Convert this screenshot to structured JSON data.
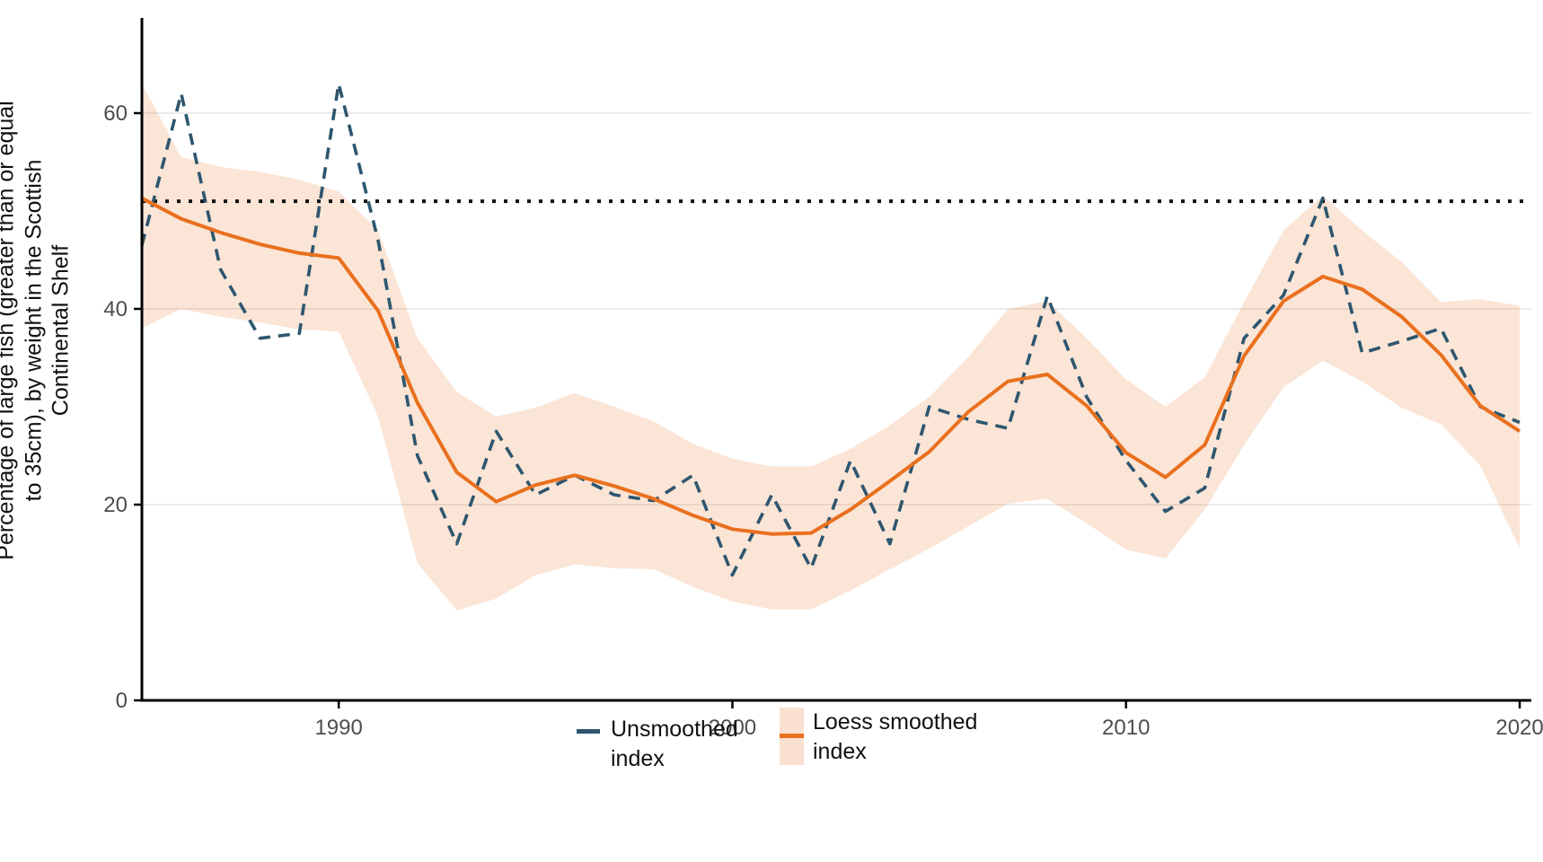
{
  "chart_data": {
    "type": "line",
    "title": "",
    "xlabel": "",
    "ylabel": "Percentage of large fish (greater than or equal\nto 35cm), by weight in the Scottish\nContinental Shelf",
    "x_ticks": [
      1990,
      2000,
      2010,
      2020
    ],
    "y_ticks": [
      0,
      20,
      40,
      60
    ],
    "xlim": [
      1985,
      2020
    ],
    "ylim": [
      0,
      69
    ],
    "grid": "horizontal only, very light grey",
    "legend_position": "bottom center",
    "reference_line": {
      "value": 51,
      "style": "dotted",
      "color": "#111111"
    },
    "years": [
      1985,
      1986,
      1987,
      1988,
      1989,
      1990,
      1991,
      1992,
      1993,
      1994,
      1995,
      1996,
      1997,
      1998,
      1999,
      2000,
      2001,
      2002,
      2003,
      2004,
      2005,
      2006,
      2007,
      2008,
      2009,
      2010,
      2011,
      2012,
      2013,
      2014,
      2015,
      2016,
      2017,
      2018,
      2019,
      2020
    ],
    "series": [
      {
        "name": "Unsmoothed index",
        "style": "dashed",
        "color": "#2E566F",
        "values": [
          46.5,
          62,
          44,
          37,
          37.5,
          63,
          47,
          25,
          16,
          27.5,
          21,
          23,
          21,
          20.4,
          23,
          12.8,
          21,
          13.5,
          24.5,
          16,
          30,
          28.7,
          27.8,
          41.3,
          31,
          24.5,
          19.3,
          21.7,
          37,
          41.4,
          51.3,
          35.5,
          36.7,
          38,
          30,
          28.4
        ]
      },
      {
        "name": "Loess smoothed index",
        "style": "solid with confidence band",
        "color": "#E9701E",
        "band_color": "#FBE2D4",
        "values": [
          51.3,
          49.2,
          47.8,
          46.6,
          45.7,
          45.2,
          39.8,
          30.4,
          23.3,
          20.3,
          22.0,
          23.0,
          21.9,
          20.6,
          18.9,
          17.5,
          17.0,
          17.1,
          19.5,
          22.4,
          25.4,
          29.5,
          32.6,
          33.3,
          30.1,
          25.3,
          22.8,
          26.1,
          35.2,
          40.8,
          43.3,
          42.0,
          39.2,
          35.3,
          30.1,
          27.5
        ],
        "ci_lower": [
          38.0,
          40.0,
          39.2,
          38.6,
          37.9,
          37.7,
          29.0,
          14.0,
          9.2,
          10.4,
          12.8,
          13.9,
          13.5,
          13.4,
          11.6,
          10.1,
          9.3,
          9.3,
          11.2,
          13.4,
          15.5,
          17.8,
          20.1,
          20.6,
          18.1,
          15.4,
          14.5,
          19.5,
          26.1,
          32.0,
          34.7,
          32.6,
          29.9,
          28.2,
          24.0,
          15.5
        ],
        "ci_upper": [
          63.0,
          55.5,
          54.5,
          54.0,
          53.2,
          52.0,
          48.0,
          37.0,
          31.5,
          29.0,
          29.9,
          31.4,
          30.0,
          28.5,
          26.2,
          24.7,
          23.9,
          23.9,
          25.7,
          28.1,
          31.0,
          35.1,
          40.0,
          40.8,
          37.0,
          32.8,
          30.0,
          33.0,
          40.7,
          48.0,
          51.6,
          48.0,
          44.8,
          40.7,
          41.0,
          40.3
        ]
      }
    ],
    "legend_labels": {
      "unsmoothed": "Unsmoothed\n index",
      "loess": "Loess smoothed\n index"
    },
    "colors": {
      "unsmoothed_line": "#2E566F",
      "loess_line": "#E9701E",
      "band_fill": "#FBE2D4",
      "reference_dotted": "#111111",
      "axis_line": "#000000",
      "tick_label": "#4D4D4D",
      "gridline": "#EBEBEB",
      "background": "#FFFFFF"
    }
  }
}
